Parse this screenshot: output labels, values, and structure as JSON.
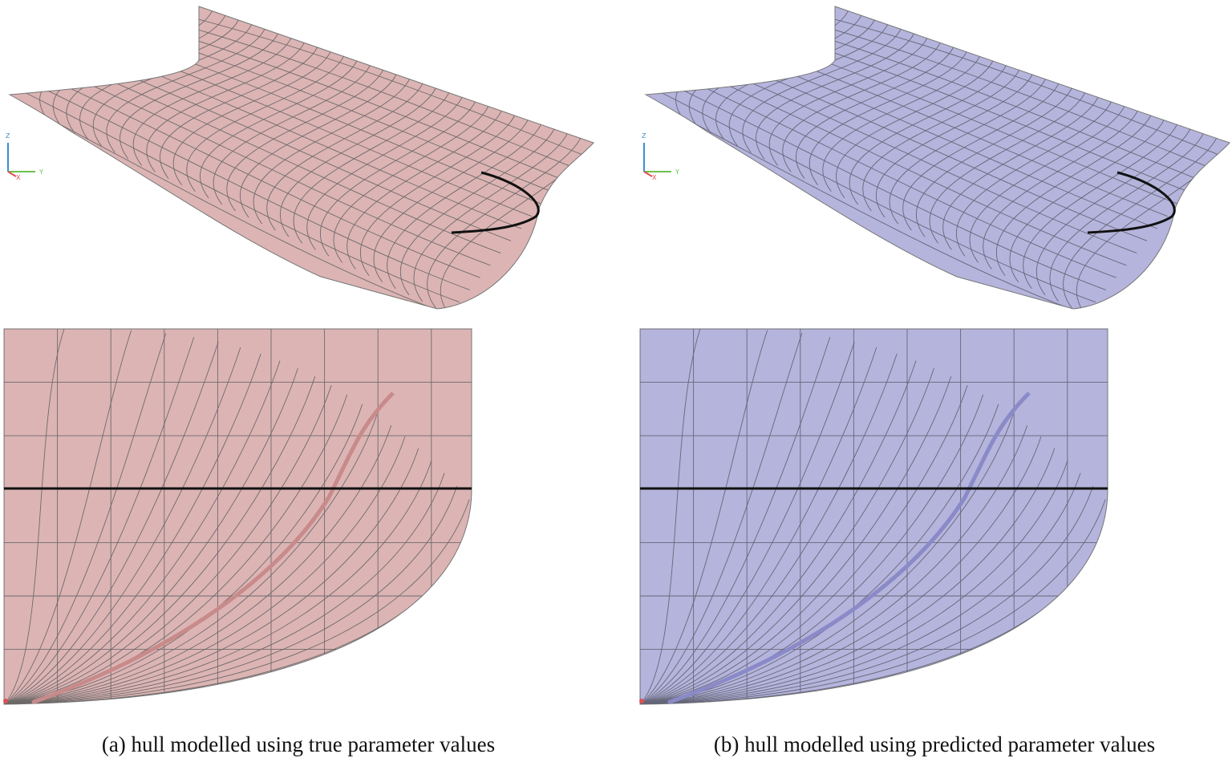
{
  "figure": {
    "panels": [
      {
        "caption": "(a) hull modelled using true parameter values",
        "axis_labels": {
          "z": "Z",
          "y": "Y",
          "x": "X"
        }
      },
      {
        "caption": "(b) hull modelled using predicted parameter values",
        "axis_labels": {
          "z": "Z",
          "y": "Y",
          "x": "X"
        }
      }
    ]
  }
}
